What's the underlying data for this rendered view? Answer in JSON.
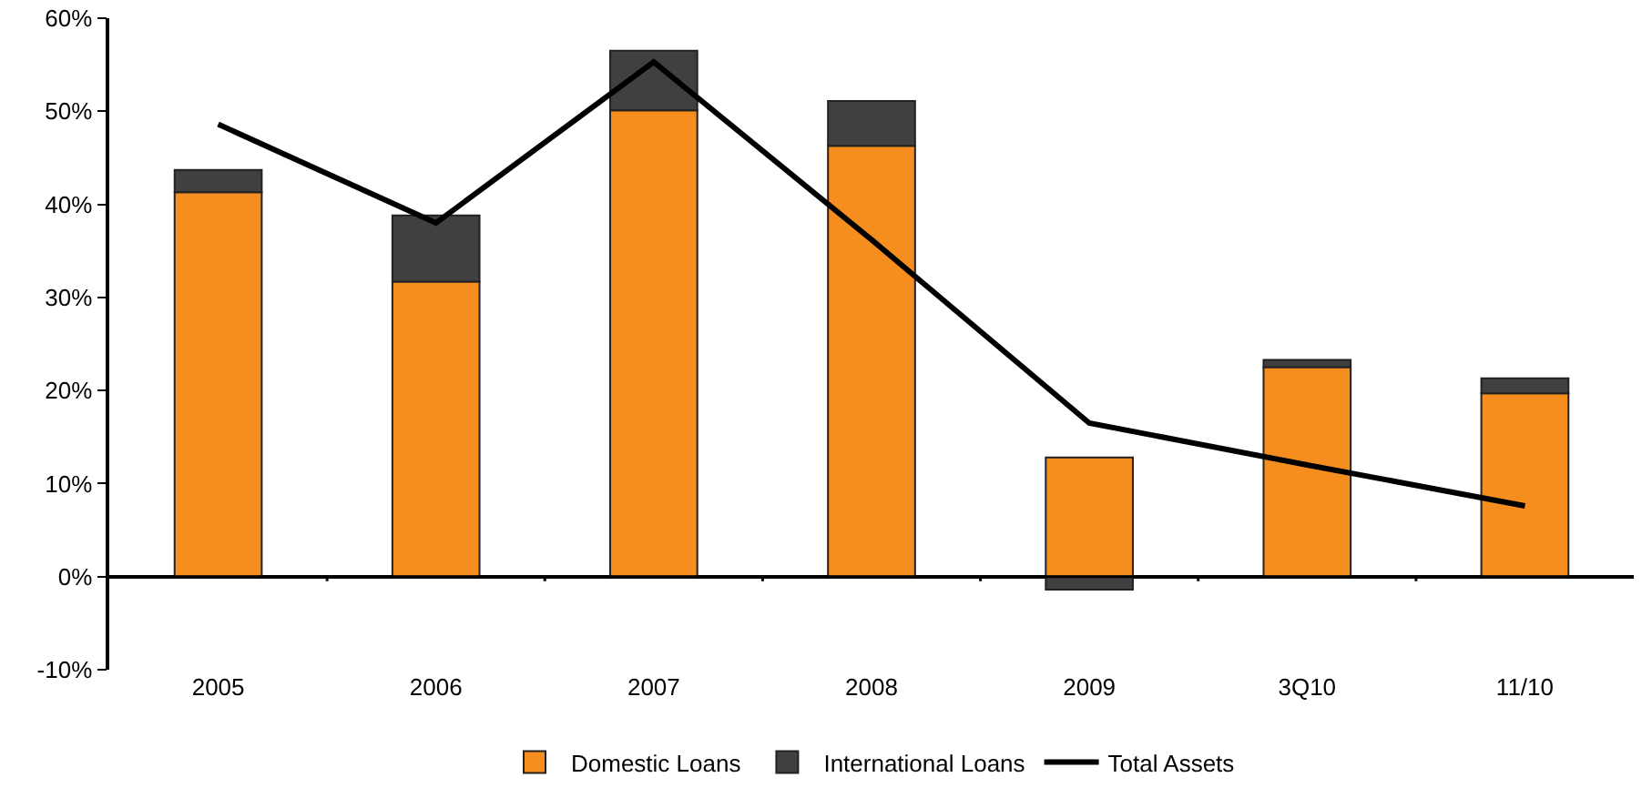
{
  "chart_data": {
    "type": "bar",
    "stacked": true,
    "categories": [
      "2005",
      "2006",
      "2007",
      "2008",
      "2009",
      "3Q10",
      "11/10"
    ],
    "series": [
      {
        "name": "Domestic Loans",
        "color": "#f68d1f",
        "values": [
          41.3,
          31.7,
          50.1,
          46.3,
          12.8,
          22.5,
          19.7
        ]
      },
      {
        "name": "International Loans",
        "color": "#404040",
        "values": [
          2.4,
          7.1,
          6.4,
          4.8,
          -1.4,
          0.8,
          1.6
        ]
      },
      {
        "name": "Total Assets",
        "type": "line",
        "color": "#000000",
        "values": [
          48.6,
          38.0,
          55.3,
          36.2,
          16.5,
          12.0,
          7.6
        ]
      }
    ],
    "ylim": [
      -10,
      60
    ],
    "yticks": [
      {
        "value": -10,
        "label": "-10%"
      },
      {
        "value": 0,
        "label": "0%"
      },
      {
        "value": 10,
        "label": "10%"
      },
      {
        "value": 20,
        "label": "20%"
      },
      {
        "value": 30,
        "label": "30%"
      },
      {
        "value": 40,
        "label": "40%"
      },
      {
        "value": 50,
        "label": "50%"
      },
      {
        "value": 60,
        "label": "60%"
      }
    ],
    "grid": false,
    "legend": "bottom",
    "marker": "none",
    "line_style": "solid"
  }
}
